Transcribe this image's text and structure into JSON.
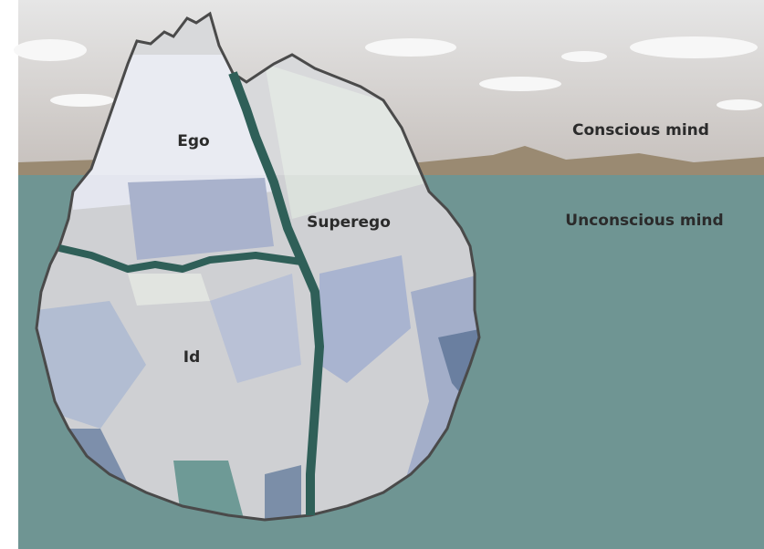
{
  "diagram": {
    "regions": [
      {
        "label": "Ego"
      },
      {
        "label": "Superego"
      },
      {
        "label": "Id"
      }
    ],
    "levels": [
      {
        "label": "Conscious mind"
      },
      {
        "label": "Unconscious mind"
      }
    ]
  }
}
